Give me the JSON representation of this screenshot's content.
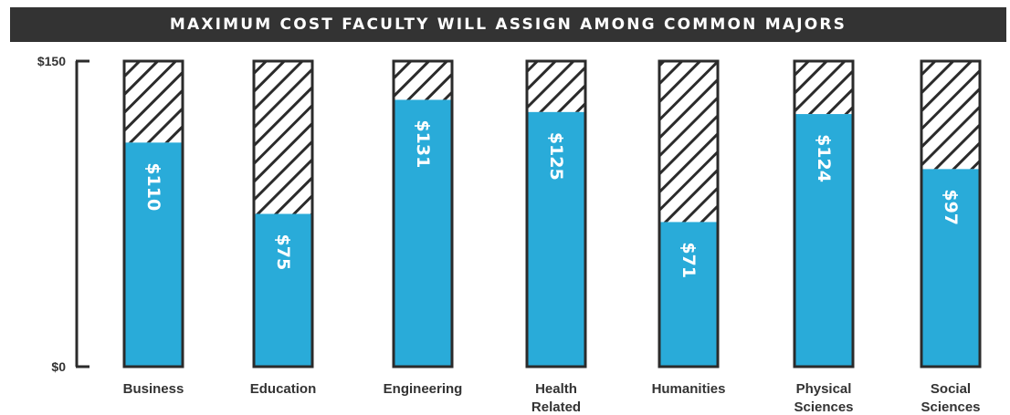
{
  "chart_data": {
    "type": "bar",
    "title": "MAXIMUM COST FACULTY WILL ASSIGN AMONG COMMON MAJORS",
    "categories": [
      [
        "Business"
      ],
      [
        "Education"
      ],
      [
        "Engineering"
      ],
      [
        "Health",
        "Related"
      ],
      [
        "Humanities"
      ],
      [
        "Physical",
        "Sciences"
      ],
      [
        "Social",
        "Sciences"
      ]
    ],
    "values": [
      110,
      75,
      131,
      125,
      71,
      124,
      97
    ],
    "value_labels": [
      "$110",
      "$75",
      "$131",
      "$125",
      "$71",
      "$124",
      "$97"
    ],
    "ylim": [
      0,
      150
    ],
    "y_ticks": [
      {
        "value": 150,
        "label": "$150"
      },
      {
        "value": 0,
        "label": "$0"
      }
    ],
    "grid": false,
    "colors": {
      "bar": "#29ABD9",
      "remainder_hatch": "#2b2b2b",
      "outline": "#2b2b2b",
      "title_background": "#333333"
    }
  }
}
